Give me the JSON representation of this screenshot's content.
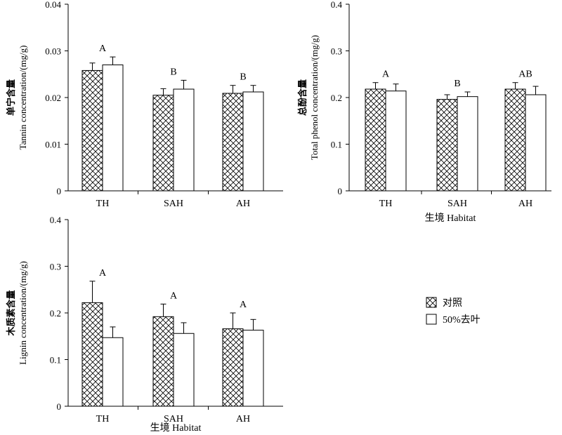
{
  "chart_data": [
    {
      "type": "bar",
      "categories": [
        "TH",
        "SAH",
        "AH"
      ],
      "series": [
        {
          "name": "对照",
          "values": [
            0.0258,
            0.0205,
            0.0209
          ],
          "errors": [
            0.0016,
            0.0014,
            0.0017
          ]
        },
        {
          "name": "50%去叶",
          "values": [
            0.027,
            0.0218,
            0.0212
          ],
          "errors": [
            0.0017,
            0.0019,
            0.0014
          ]
        }
      ],
      "letters": [
        "A",
        "B",
        "B"
      ],
      "ylabel_cn": "单宁含量",
      "ylabel": "Tannin concentration/(mg/g)",
      "xlabel": "",
      "ylim": [
        0,
        0.04
      ],
      "yticks": [
        "0",
        "0.01",
        "0.02",
        "0.03",
        "0.04"
      ]
    },
    {
      "type": "bar",
      "categories": [
        "TH",
        "SAH",
        "AH"
      ],
      "series": [
        {
          "name": "对照",
          "values": [
            0.218,
            0.196,
            0.218
          ],
          "errors": [
            0.014,
            0.01,
            0.014
          ]
        },
        {
          "name": "50%去叶",
          "values": [
            0.214,
            0.202,
            0.206
          ],
          "errors": [
            0.015,
            0.01,
            0.018
          ]
        }
      ],
      "letters": [
        "A",
        "B",
        "AB"
      ],
      "ylabel_cn": "总酚含量",
      "ylabel": "Total phenol concentration/(mg/g)",
      "xlabel": "生境  Habitat",
      "ylim": [
        0,
        0.4
      ],
      "yticks": [
        "0",
        "0.1",
        "0.2",
        "0.3",
        "0.4"
      ]
    },
    {
      "type": "bar",
      "categories": [
        "TH",
        "SAH",
        "AH"
      ],
      "series": [
        {
          "name": "对照",
          "values": [
            0.222,
            0.192,
            0.166
          ],
          "errors": [
            0.046,
            0.027,
            0.034
          ]
        },
        {
          "name": "50%去叶",
          "values": [
            0.147,
            0.156,
            0.163
          ],
          "errors": [
            0.023,
            0.023,
            0.023
          ]
        }
      ],
      "letters": [
        "A",
        "A",
        "A"
      ],
      "ylabel_cn": "木质素含量",
      "ylabel": "Lignin concentration/(mg/g)",
      "xlabel": "生境 Habitat",
      "ylim": [
        0,
        0.4
      ],
      "yticks": [
        "0",
        "0.1",
        "0.2",
        "0.3",
        "0.4"
      ]
    }
  ],
  "legend": {
    "items": [
      {
        "label": "对照",
        "pattern": "crosshatch"
      },
      {
        "label": "50%去叶",
        "pattern": "blank"
      }
    ]
  }
}
